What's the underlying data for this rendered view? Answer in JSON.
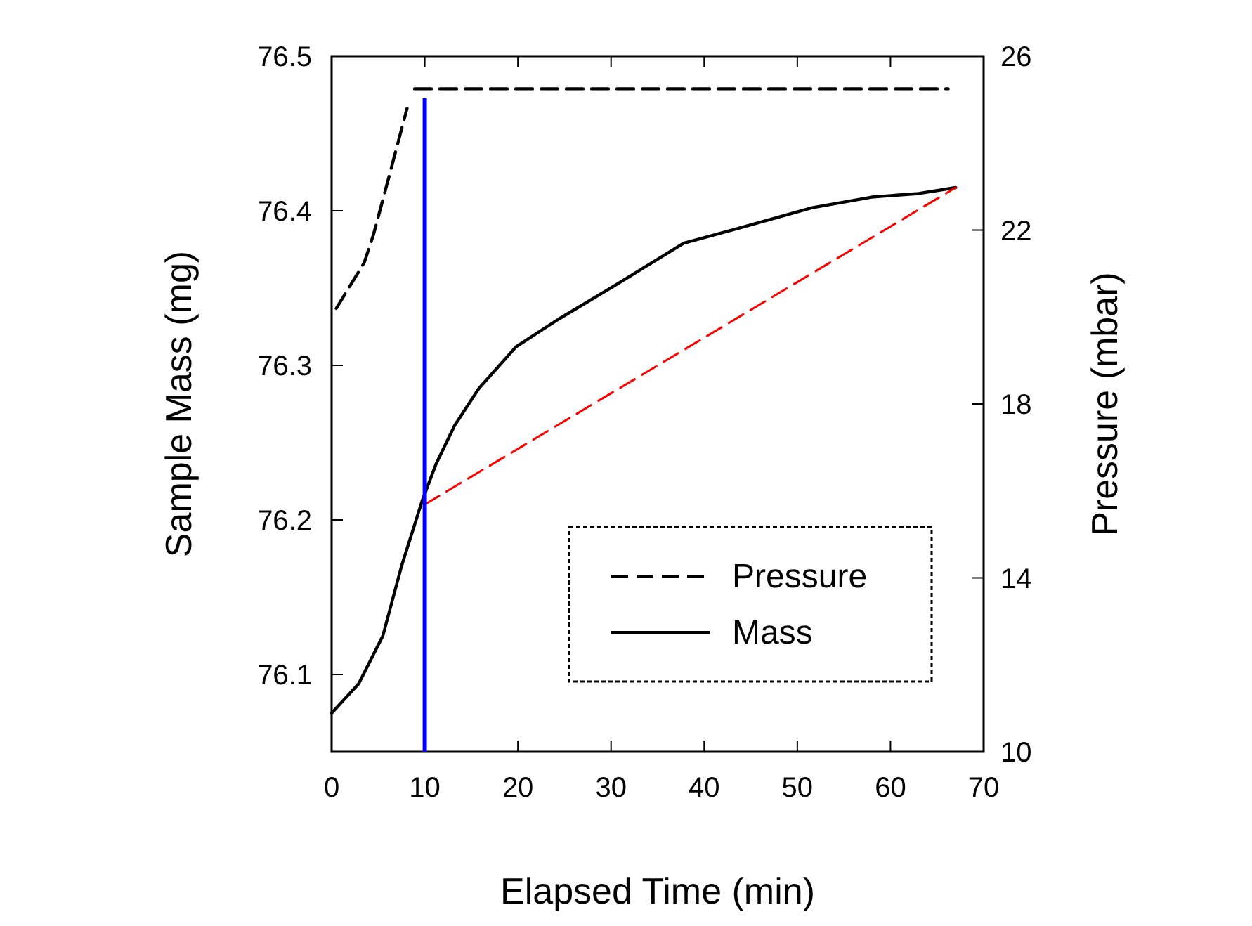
{
  "chart_data": {
    "type": "line",
    "xlabel": "Elapsed Time (min)",
    "ylabel": "Sample Mass (mg)",
    "y2label": "Pressure (mbar)",
    "xlim": [
      0,
      70
    ],
    "xticks": [
      0,
      10,
      20,
      30,
      40,
      50,
      60,
      70
    ],
    "ylim": [
      76.05,
      76.5
    ],
    "yticks": [
      76.1,
      76.2,
      76.3,
      76.4,
      76.5
    ],
    "y2lim": [
      10,
      26
    ],
    "y2ticks": [
      10,
      14,
      18,
      22,
      26
    ],
    "legend": "bottom right",
    "grid": false,
    "series": [
      {
        "name": "Pressure",
        "color": "#000000",
        "axis": "y2",
        "line_style": "dashed",
        "x": [
          0.5,
          3.5,
          4.5,
          6,
          8.1,
          8.5,
          8.9,
          66.2
        ],
        "values": [
          20.2,
          21.25,
          21.9,
          23.1,
          24.8,
          null,
          25.25,
          25.25
        ]
      },
      {
        "name": "Mass",
        "color": "#000000",
        "line_style": "solid",
        "x": [
          0,
          2.9,
          5.5,
          7.5,
          9.7,
          11.2,
          13.2,
          15.8,
          19.8,
          24.4,
          30.5,
          37.8,
          43.9,
          51.6,
          58.2,
          62.8,
          67
        ],
        "values": [
          76.075,
          76.094,
          76.125,
          76.17,
          76.212,
          76.236,
          76.261,
          76.285,
          76.312,
          76.33,
          76.352,
          76.379,
          76.389,
          76.402,
          76.409,
          76.411,
          76.415
        ]
      },
      {
        "color": "#ff0000",
        "line_style": "dashed",
        "x": [
          10,
          67
        ],
        "values": [
          76.21,
          76.415
        ]
      }
    ],
    "ref_lines": [
      {
        "axis": "x",
        "value": 10,
        "color": "#0000ff"
      }
    ]
  }
}
